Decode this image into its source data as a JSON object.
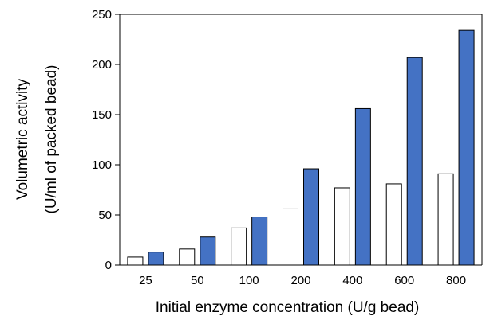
{
  "chart_data": {
    "type": "bar",
    "title": "",
    "xlabel": "Initial enzyme concentration (U/g bead)",
    "ylabel_line1": "Volumetric activity",
    "ylabel_line2": "(U/ml of packed bead)",
    "categories": [
      "25",
      "50",
      "100",
      "200",
      "400",
      "600",
      "800"
    ],
    "ylim": [
      0,
      250
    ],
    "yticks": [
      0,
      50,
      100,
      150,
      200,
      250
    ],
    "grid": false,
    "legend": "none",
    "series": [
      {
        "values": [
          8,
          16,
          37,
          56,
          77,
          81,
          91
        ],
        "color": "#ffffff",
        "stroke": "#000000"
      },
      {
        "values": [
          13,
          28,
          48,
          96,
          156,
          207,
          234
        ],
        "color": "#4472c4",
        "stroke": "#000000"
      }
    ]
  }
}
